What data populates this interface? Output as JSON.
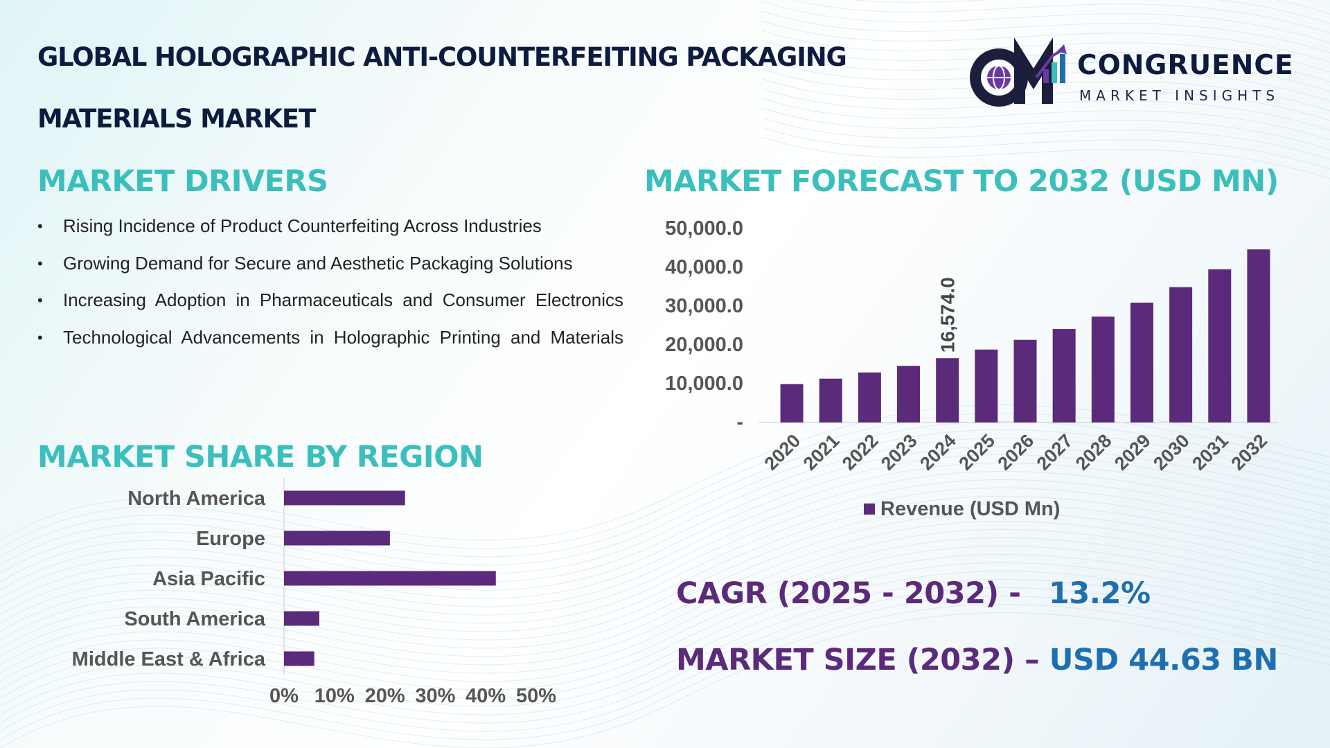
{
  "title": {
    "line1": "GLOBAL HOLOGRAPHIC ANTI-COUNTERFEITING PACKAGING",
    "line2": "MATERIALS MARKET"
  },
  "logo": {
    "name": "CONGRUENCE",
    "subtitle": "MARKET INSIGHTS",
    "icon": "cm-globe-chart-logo"
  },
  "drivers": {
    "heading": "MARKET DRIVERS",
    "items": [
      "Rising Incidence of Product Counterfeiting Across Industries",
      "Growing Demand for Secure and Aesthetic Packaging Solutions",
      "Increasing Adoption in Pharmaceuticals and Consumer Electronics",
      "Technological Advancements in Holographic Printing and Materials"
    ]
  },
  "forecast_heading": "MARKET FORECAST TO 2032 (USD MN)",
  "region_heading": "MARKET SHARE BY REGION",
  "stats": {
    "cagr_label": "CAGR (2025 - 2032) -",
    "cagr_value": "13.2%",
    "size_label": "MARKET SIZE (2032) –",
    "size_value": "USD 44.63 BN"
  },
  "colors": {
    "bar": "#5b2a7a",
    "heading_teal": "#3bbfbd",
    "title_navy": "#0d1b3e",
    "stat_value_blue": "#1e6fb0",
    "axis_text": "#555555"
  },
  "chart_data": [
    {
      "type": "bar",
      "orientation": "vertical",
      "categories": [
        "2020",
        "2021",
        "2022",
        "2023",
        "2024",
        "2025",
        "2026",
        "2027",
        "2028",
        "2029",
        "2030",
        "2031",
        "2032"
      ],
      "series": [
        {
          "name": "Revenue (USD Mn)",
          "values": [
            9900,
            11300,
            12900,
            14600,
            16574,
            18800,
            21300,
            24100,
            27300,
            30900,
            34900,
            39500,
            44630
          ]
        }
      ],
      "ylim": [
        0,
        50000
      ],
      "y_ticks": [
        "-",
        "10,000.0",
        "20,000.0",
        "30,000.0",
        "40,000.0",
        "50,000.0"
      ],
      "data_labels": [
        {
          "category": "2024",
          "text": "16,574.0"
        }
      ],
      "legend": "bottom",
      "grid": false
    },
    {
      "type": "bar",
      "orientation": "horizontal",
      "categories": [
        "North America",
        "Europe",
        "Asia Pacific",
        "South America",
        "Middle East & Africa"
      ],
      "values": [
        24,
        21,
        42,
        7,
        6
      ],
      "xlim": [
        0,
        50
      ],
      "x_ticks": [
        "0%",
        "10%",
        "20%",
        "30%",
        "40%",
        "50%"
      ],
      "legend": "none",
      "grid": false
    }
  ]
}
